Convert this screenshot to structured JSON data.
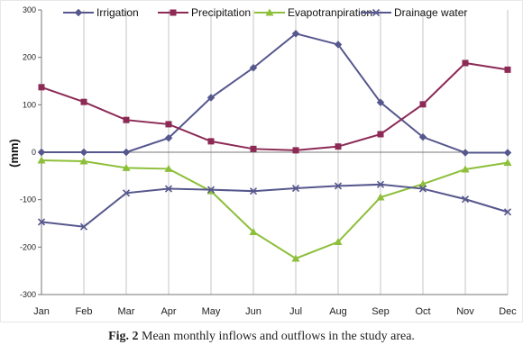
{
  "chart_data": {
    "type": "line",
    "categories": [
      "Jan",
      "Feb",
      "Mar",
      "Apr",
      "May",
      "Jun",
      "Jul",
      "Aug",
      "Sep",
      "Oct",
      "Nov",
      "Dec"
    ],
    "ylabel": "(mm)",
    "ylim": [
      -300,
      300
    ],
    "yticks": [
      -300,
      -200,
      -100,
      0,
      100,
      200,
      300
    ],
    "ytick_labels": [
      "-300",
      "-200",
      "-100",
      "0",
      "100",
      "200",
      "300"
    ],
    "grid": "vertical",
    "legend_position": "top",
    "series": [
      {
        "name": "Irrigation",
        "color": "#56578d",
        "marker": "diamond",
        "values": [
          0,
          0,
          0,
          30,
          115,
          178,
          250,
          227,
          105,
          32,
          -1,
          -1
        ]
      },
      {
        "name": "Precipitation",
        "color": "#8c2a55",
        "marker": "square",
        "values": [
          137,
          106,
          68,
          59,
          23,
          7,
          4,
          12,
          38,
          101,
          188,
          174
        ]
      },
      {
        "name": "Evapotranpiration",
        "color": "#8dbf3a",
        "marker": "triangle",
        "values": [
          -17,
          -19,
          -33,
          -35,
          -82,
          -168,
          -224,
          -189,
          -95,
          -67,
          -36,
          -22
        ]
      },
      {
        "name": "Drainage water",
        "color": "#56578d",
        "marker": "x",
        "values": [
          -147,
          -157,
          -86,
          -77,
          -79,
          -82,
          -76,
          -71,
          -68,
          -77,
          -99,
          -126
        ]
      }
    ]
  },
  "caption": {
    "label": "Fig. 2",
    "text": " Mean monthly inflows and outflows in the study area."
  }
}
